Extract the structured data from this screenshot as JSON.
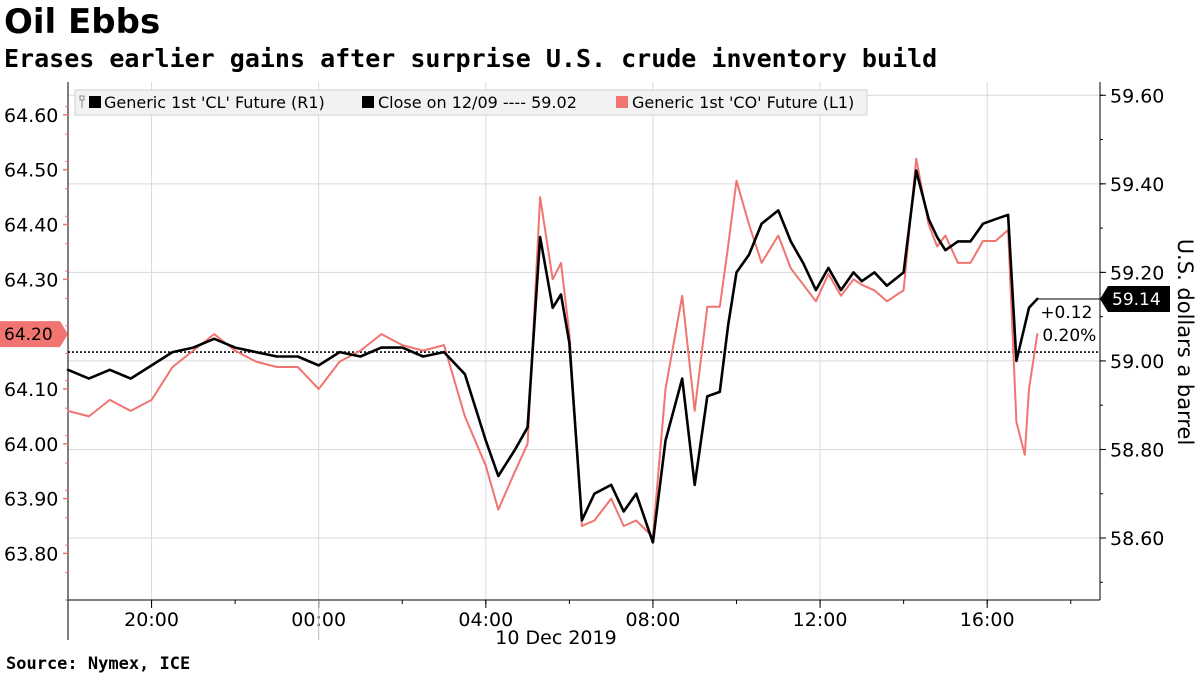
{
  "chart_data": {
    "type": "line",
    "title": "Oil Ebbs",
    "subtitle": "Erases earlier gains after surprise U.S. crude inventory build",
    "source": "Source: Nymex, ICE",
    "x_ticks": [
      "20:00",
      "00:00",
      "04:00",
      "08:00",
      "12:00",
      "16:00"
    ],
    "x_date_label": "10 Dec 2019",
    "x_range_hours": [
      18.0,
      42.7
    ],
    "x_tick_hours": [
      20,
      24,
      28,
      32,
      36,
      40
    ],
    "left_axis": {
      "ticks": [
        "63.80",
        "63.90",
        "64.00",
        "64.10",
        "64.20",
        "64.30",
        "64.40",
        "64.50",
        "64.60"
      ],
      "range": [
        63.715,
        64.66
      ],
      "current_label": "64.20",
      "current_value": 64.2
    },
    "right_axis": {
      "ticks": [
        "58.60",
        "58.80",
        "59.00",
        "59.20",
        "59.40",
        "59.60"
      ],
      "range": [
        58.46,
        59.63
      ],
      "label": "U.S. dollars a barrel",
      "current_label": "59.14",
      "current_value": 59.14,
      "reference_value": 59.02
    },
    "change": {
      "abs": "+0.12",
      "pct": "0.20%"
    },
    "legend": [
      {
        "label": "Generic 1st 'CL' Future  (R1)",
        "color": "#000000"
      },
      {
        "label": "Close on 12/09 ---- 59.02",
        "color": "#000000"
      },
      {
        "label": "Generic 1st 'CO' Future  (L1)",
        "color": "#f07470"
      }
    ],
    "series": [
      {
        "name": "Generic 1st 'CL' Future  (R1)",
        "axis": "right",
        "color": "#000000",
        "x": [
          18.0,
          18.5,
          19.0,
          19.5,
          20.0,
          20.5,
          21.0,
          21.5,
          22.0,
          22.5,
          23.0,
          23.5,
          24.0,
          24.5,
          25.0,
          25.5,
          26.0,
          26.5,
          27.0,
          27.5,
          28.0,
          28.3,
          28.7,
          29.0,
          29.3,
          29.6,
          29.8,
          30.0,
          30.3,
          30.6,
          31.0,
          31.3,
          31.6,
          32.0,
          32.3,
          32.7,
          33.0,
          33.3,
          33.6,
          33.8,
          34.0,
          34.3,
          34.6,
          35.0,
          35.3,
          35.6,
          35.9,
          36.2,
          36.5,
          36.8,
          37.0,
          37.3,
          37.6,
          38.0,
          38.3,
          38.6,
          38.8,
          39.0,
          39.3,
          39.6,
          39.9,
          40.2,
          40.5,
          40.7,
          40.9,
          41.0,
          41.2
        ],
        "y": [
          58.98,
          58.96,
          58.98,
          58.96,
          58.99,
          59.02,
          59.03,
          59.05,
          59.03,
          59.02,
          59.01,
          59.01,
          58.99,
          59.02,
          59.01,
          59.03,
          59.03,
          59.01,
          59.02,
          58.97,
          58.82,
          58.74,
          58.8,
          58.85,
          59.28,
          59.12,
          59.15,
          59.04,
          58.64,
          58.7,
          58.72,
          58.66,
          58.7,
          58.59,
          58.82,
          58.96,
          58.72,
          58.92,
          58.93,
          59.08,
          59.2,
          59.24,
          59.31,
          59.34,
          59.27,
          59.22,
          59.16,
          59.21,
          59.16,
          59.2,
          59.18,
          59.2,
          59.17,
          59.2,
          59.43,
          59.32,
          59.28,
          59.25,
          59.27,
          59.27,
          59.31,
          59.32,
          59.33,
          59.0,
          59.08,
          59.12,
          59.14
        ]
      },
      {
        "name": "Generic 1st 'CO' Future  (L1)",
        "axis": "left",
        "color": "#f07470",
        "x": [
          18.0,
          18.5,
          19.0,
          19.5,
          20.0,
          20.5,
          21.0,
          21.5,
          22.0,
          22.5,
          23.0,
          23.5,
          24.0,
          24.5,
          25.0,
          25.5,
          26.0,
          26.5,
          27.0,
          27.5,
          28.0,
          28.3,
          28.7,
          29.0,
          29.3,
          29.6,
          29.8,
          30.0,
          30.3,
          30.6,
          31.0,
          31.3,
          31.6,
          32.0,
          32.3,
          32.7,
          33.0,
          33.3,
          33.6,
          33.8,
          34.0,
          34.3,
          34.6,
          35.0,
          35.3,
          35.6,
          35.9,
          36.2,
          36.5,
          36.8,
          37.0,
          37.3,
          37.6,
          38.0,
          38.3,
          38.6,
          38.8,
          39.0,
          39.3,
          39.6,
          39.9,
          40.2,
          40.5,
          40.7,
          40.9,
          41.0,
          41.2
        ],
        "y": [
          64.06,
          64.05,
          64.08,
          64.06,
          64.08,
          64.14,
          64.17,
          64.2,
          64.17,
          64.15,
          64.14,
          64.14,
          64.1,
          64.15,
          64.17,
          64.2,
          64.18,
          64.17,
          64.18,
          64.05,
          63.96,
          63.88,
          63.95,
          64.0,
          64.45,
          64.3,
          64.33,
          64.2,
          63.85,
          63.86,
          63.9,
          63.85,
          63.86,
          63.83,
          64.1,
          64.27,
          64.06,
          64.25,
          64.25,
          64.36,
          64.48,
          64.4,
          64.33,
          64.38,
          64.32,
          64.29,
          64.26,
          64.31,
          64.27,
          64.3,
          64.29,
          64.28,
          64.26,
          64.28,
          64.52,
          64.4,
          64.36,
          64.38,
          64.33,
          64.33,
          64.37,
          64.37,
          64.39,
          64.04,
          63.98,
          64.1,
          64.2
        ]
      }
    ],
    "grid": true,
    "legend_position": "top-left"
  }
}
